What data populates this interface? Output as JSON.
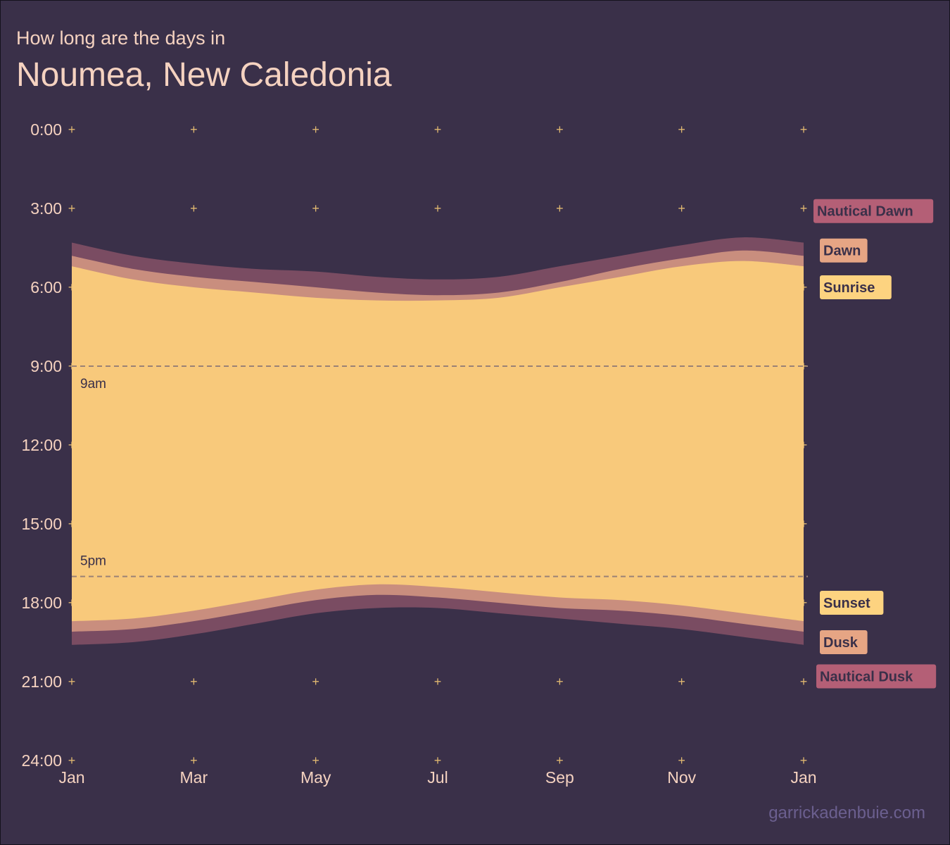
{
  "header": {
    "subtitle": "How long are the days in",
    "title": "Noumea, New Caledonia"
  },
  "credit": "garrickadenbuie.com",
  "colors": {
    "background": "#3a3049",
    "text": "#f5d2c0",
    "grid": "#e0b870",
    "day": "#f8c97b",
    "twilight": "#c98e7e",
    "nautical": "#7a4c62",
    "tag_nautical": "#b45f76",
    "tag_dawn": "#e6a584",
    "tag_sunrise": "#fdd380",
    "guide": "#9a8276"
  },
  "chart_data": {
    "type": "area",
    "y_axis": {
      "range": [
        0,
        24
      ],
      "reversed": true,
      "ticks": [
        0,
        3,
        6,
        9,
        12,
        15,
        18,
        21,
        24
      ],
      "tick_labels": [
        "0:00",
        "3:00",
        "6:00",
        "9:00",
        "12:00",
        "15:00",
        "18:00",
        "21:00",
        "24:00"
      ]
    },
    "x_axis": {
      "range": [
        0,
        12
      ],
      "ticks": [
        0,
        2,
        4,
        6,
        8,
        10,
        12
      ],
      "tick_labels": [
        "Jan",
        "Mar",
        "May",
        "Jul",
        "Sep",
        "Nov",
        "Jan"
      ]
    },
    "x": [
      0,
      1,
      2,
      3,
      4,
      5,
      6,
      7,
      8,
      9,
      10,
      11,
      12
    ],
    "series": [
      {
        "name": "Nautical Dawn",
        "values": [
          4.3,
          4.8,
          5.1,
          5.3,
          5.4,
          5.6,
          5.7,
          5.6,
          5.2,
          4.8,
          4.4,
          4.1,
          4.3
        ]
      },
      {
        "name": "Dawn",
        "values": [
          4.8,
          5.3,
          5.6,
          5.8,
          6.0,
          6.2,
          6.3,
          6.2,
          5.8,
          5.3,
          4.9,
          4.6,
          4.8
        ]
      },
      {
        "name": "Sunrise",
        "values": [
          5.2,
          5.7,
          6.0,
          6.2,
          6.4,
          6.5,
          6.5,
          6.4,
          6.0,
          5.6,
          5.2,
          5.0,
          5.2
        ]
      },
      {
        "name": "Sunset",
        "values": [
          18.7,
          18.6,
          18.3,
          17.9,
          17.5,
          17.3,
          17.4,
          17.6,
          17.8,
          17.9,
          18.1,
          18.4,
          18.7
        ]
      },
      {
        "name": "Dusk",
        "values": [
          19.1,
          19.0,
          18.7,
          18.3,
          17.9,
          17.7,
          17.8,
          18.0,
          18.2,
          18.3,
          18.5,
          18.8,
          19.1
        ]
      },
      {
        "name": "Nautical Dusk",
        "values": [
          19.6,
          19.5,
          19.2,
          18.8,
          18.4,
          18.2,
          18.2,
          18.4,
          18.6,
          18.8,
          19.0,
          19.3,
          19.6
        ]
      }
    ],
    "reference_lines": [
      {
        "value": 9,
        "label": "9am"
      },
      {
        "value": 17,
        "label": "5pm"
      }
    ],
    "legend_labels": [
      "Nautical Dawn",
      "Dawn",
      "Sunrise",
      "Sunset",
      "Dusk",
      "Nautical Dusk"
    ]
  }
}
